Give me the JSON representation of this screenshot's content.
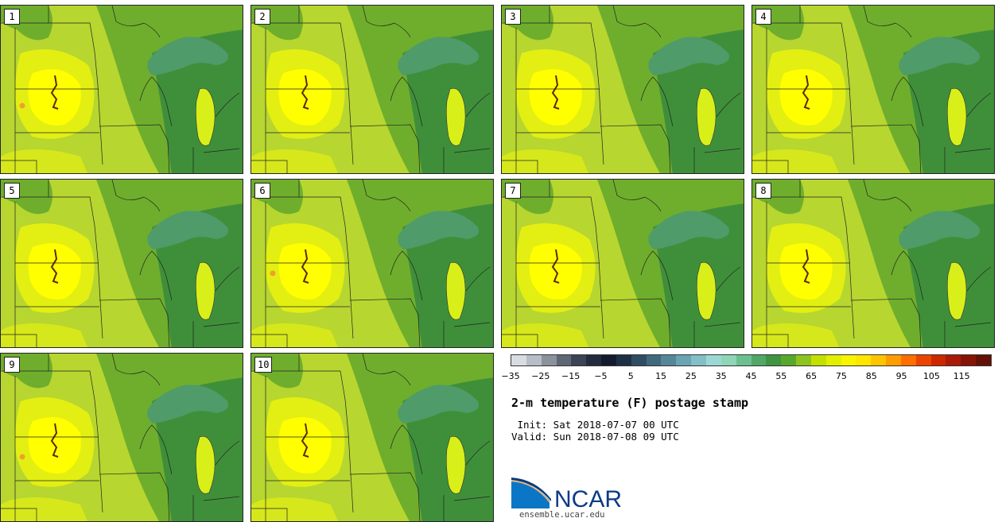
{
  "panels": [
    {
      "label": "1",
      "hot_spot": true
    },
    {
      "label": "2",
      "hot_spot": false
    },
    {
      "label": "3",
      "hot_spot": false
    },
    {
      "label": "4",
      "hot_spot": false
    },
    {
      "label": "5",
      "hot_spot": false
    },
    {
      "label": "6",
      "hot_spot": true
    },
    {
      "label": "7",
      "hot_spot": false
    },
    {
      "label": "8",
      "hot_spot": false
    },
    {
      "label": "9",
      "hot_spot": true
    },
    {
      "label": "10",
      "hot_spot": false
    }
  ],
  "colorbar": {
    "ticks": [
      "−35",
      "−25",
      "−15",
      "−5",
      "5",
      "15",
      "25",
      "35",
      "45",
      "55",
      "65",
      "75",
      "85",
      "95",
      "105",
      "115"
    ],
    "colors": [
      "#d9dde3",
      "#b8bec6",
      "#8a929c",
      "#5e6776",
      "#3b4456",
      "#232c3f",
      "#141b2e",
      "#1f3046",
      "#2f4d62",
      "#41697d",
      "#55869a",
      "#6aa3b2",
      "#82bfc6",
      "#9bd8d5",
      "#8fd6b9",
      "#6cc08f",
      "#4fa866",
      "#3e9440",
      "#58a82c",
      "#8dc41e",
      "#c4e000",
      "#e2ef00",
      "#f7f500",
      "#ffe600",
      "#ffc400",
      "#ff9d00",
      "#ff6e00",
      "#ec4400",
      "#cd2700",
      "#aa1a08",
      "#861406",
      "#641008"
    ]
  },
  "title": "2-m temperature (F) postage stamp",
  "init": " Init: Sat 2018-07-07 00 UTC",
  "valid": "Valid: Sun 2018-07-08 09 UTC",
  "logo": {
    "text": "NCAR",
    "url": "ensemble.ucar.edu",
    "color": "#0d3a86"
  },
  "map_colors": {
    "cool": "#3f8f3a",
    "mild": "#6fae2c",
    "warm": "#b7d630",
    "hot": "#e3ef12",
    "hottest": "#ffff00",
    "lake": "#4f9b6a",
    "lake_warm": "#d9ef1a",
    "hot_spot": "#f0a02a",
    "border": "#222222"
  }
}
